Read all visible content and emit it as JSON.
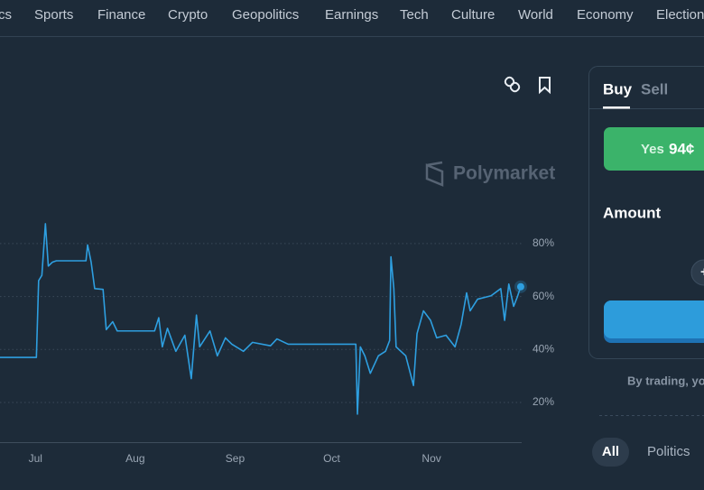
{
  "nav": [
    "cs",
    "Sports",
    "Finance",
    "Crypto",
    "Geopolitics",
    "Earnings",
    "Tech",
    "Culture",
    "World",
    "Economy",
    "Election"
  ],
  "watermark": "Polymarket",
  "chart_data": {
    "type": "line",
    "color": "#2e9fe0",
    "grid": true,
    "x": [
      -11,
      0.3,
      1,
      2,
      3.1,
      4,
      5.3,
      6.5,
      15.7,
      16.2,
      17.3,
      18.4,
      21,
      22,
      24,
      25.4,
      37,
      38.3,
      39.4,
      41,
      43.6,
      46.4,
      48.4,
      50,
      51,
      54.2,
      56.5,
      59,
      61,
      64.6,
      67.4,
      73,
      75,
      78.5,
      99.5,
      100,
      100.9,
      102.3,
      104,
      106.5,
      108.7,
      110,
      110.4,
      111.3,
      112,
      115,
      117.4,
      118.5,
      120.5,
      122.7,
      124.6,
      127.5,
      130.3,
      132.2,
      133.9,
      135,
      137.3,
      141.5,
      144.5,
      145.7,
      147,
      148.5,
      149.6,
      150.7
    ],
    "values": [
      37,
      37,
      66,
      68,
      87.5,
      71.5,
      73,
      73.5,
      73.5,
      79.5,
      73,
      63,
      62.7,
      47.5,
      50.5,
      47,
      47,
      52,
      41,
      48,
      39.3,
      45.4,
      29,
      53,
      41,
      47,
      37.6,
      44.4,
      42,
      39.3,
      42.7,
      41.4,
      44,
      42,
      42,
      15.6,
      41,
      37.6,
      31,
      37.6,
      39.3,
      43.4,
      75,
      63,
      41,
      37.6,
      26.4,
      46,
      54.6,
      51,
      44.4,
      45.4,
      41,
      49.5,
      61.4,
      54.6,
      59,
      60.3,
      63,
      51,
      64.7,
      56.3,
      59.7,
      63.7
    ],
    "xlim": [
      -11,
      151
    ],
    "xticks": [
      {
        "value": 0,
        "label": "Jul"
      },
      {
        "value": 31,
        "label": "Aug"
      },
      {
        "value": 62,
        "label": "Sep"
      },
      {
        "value": 92,
        "label": "Oct"
      },
      {
        "value": 123,
        "label": "Nov"
      }
    ],
    "ylim": [
      5,
      100
    ],
    "yticks": [
      {
        "value": 20,
        "label": "20%"
      },
      {
        "value": 40,
        "label": "40%"
      },
      {
        "value": 60,
        "label": "60%"
      },
      {
        "value": 80,
        "label": "80%"
      }
    ]
  },
  "trade": {
    "tabs": [
      "Buy",
      "Sell"
    ],
    "yes_label": "Yes",
    "yes_price": "94¢",
    "amount_label": "Amount",
    "plus": "+",
    "disclaimer": "By trading, yo"
  },
  "filters": [
    "All",
    "Politics"
  ]
}
